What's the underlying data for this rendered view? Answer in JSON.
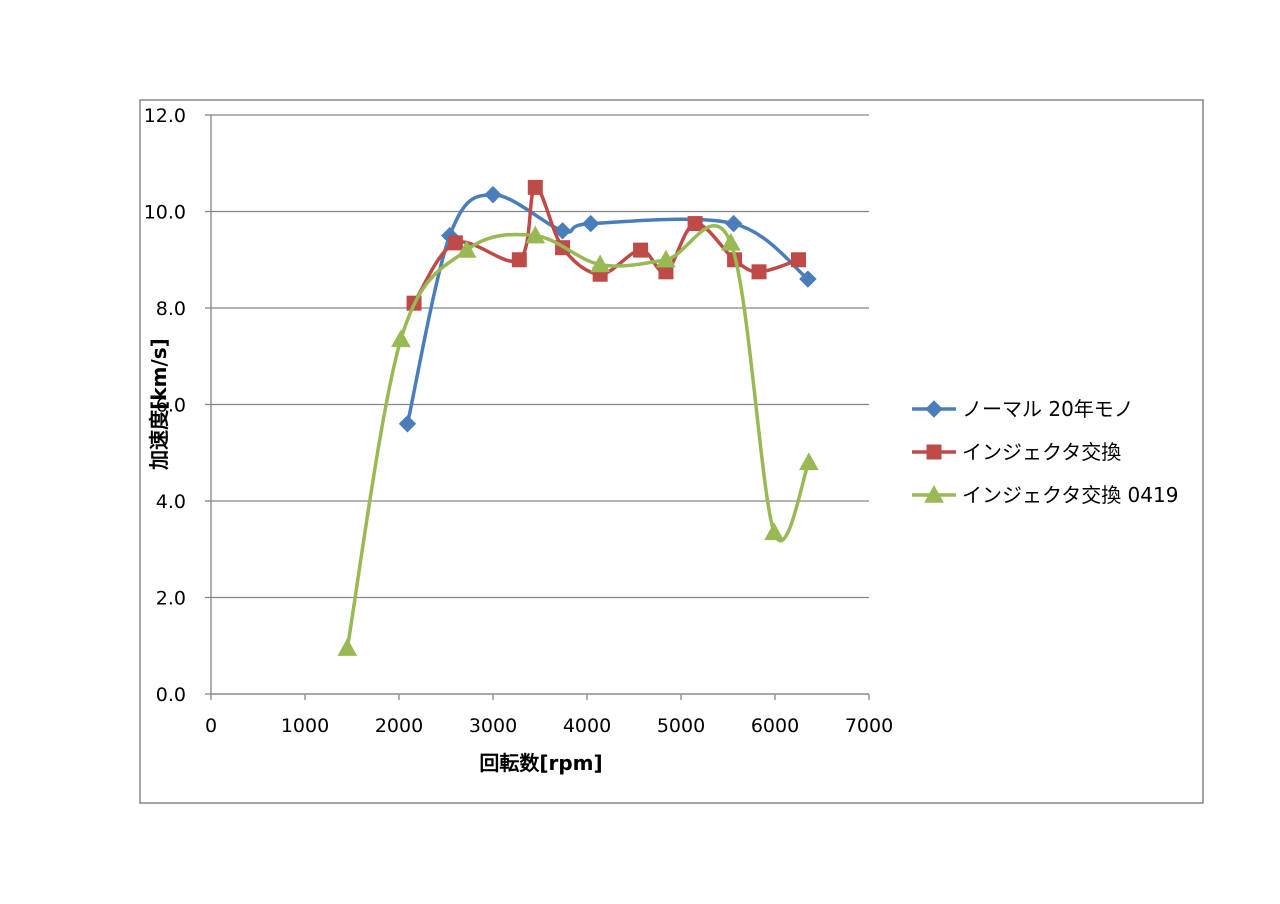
{
  "chart_data": {
    "type": "line",
    "title": "",
    "xlabel": "回転数[rpm]",
    "ylabel": "加速度[km/s]",
    "xlim": [
      0,
      7000
    ],
    "ylim": [
      0,
      12
    ],
    "x_ticks": [
      "0",
      "1000",
      "2000",
      "3000",
      "4000",
      "5000",
      "6000",
      "7000"
    ],
    "y_ticks": [
      "0.0",
      "2.0",
      "4.0",
      "6.0",
      "8.0",
      "10.0",
      "12.0"
    ],
    "grid": "horizontal",
    "legend_position": "right",
    "series": [
      {
        "name": "ノーマル 20年モノ",
        "color": "#4a7ebb",
        "marker": "diamond",
        "x": [
          2090,
          2540,
          3000,
          3740,
          4040,
          5560,
          6350
        ],
        "y": [
          5.6,
          9.5,
          10.35,
          9.6,
          9.75,
          9.75,
          8.6
        ]
      },
      {
        "name": "インジェクタ交換",
        "color": "#be4b48",
        "marker": "square",
        "x": [
          2160,
          2600,
          3280,
          3450,
          3740,
          4140,
          4570,
          4840,
          5150,
          5570,
          5830,
          6250
        ],
        "y": [
          8.1,
          9.35,
          9.0,
          10.5,
          9.25,
          8.7,
          9.2,
          8.75,
          9.75,
          9.0,
          8.75,
          9.0
        ]
      },
      {
        "name": "インジェクタ交換 0419",
        "color": "#98b954",
        "marker": "triangle",
        "x": [
          1450,
          2020,
          2720,
          3450,
          4140,
          4840,
          5530,
          5990,
          6360
        ],
        "y": [
          0.95,
          7.35,
          9.2,
          9.5,
          8.9,
          9.0,
          9.35,
          3.35,
          4.8
        ]
      }
    ]
  }
}
